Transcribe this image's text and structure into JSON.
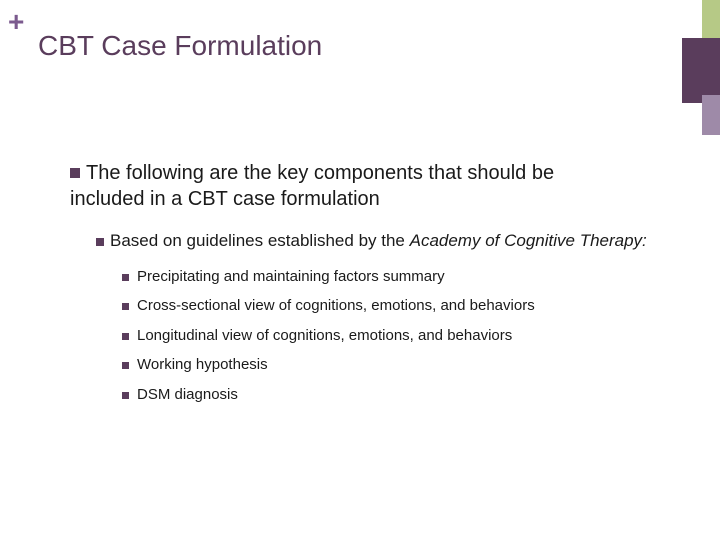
{
  "decor": {
    "plus_color": "#7b5a8e",
    "block1_color": "#b6c986",
    "block2_color": "#5a3d5c",
    "block3_color": "#9e8aa8"
  },
  "title": "CBT Case Formulation",
  "level1": {
    "text_a": "The following are the key components that should be",
    "text_b": "included in a CBT case formulation"
  },
  "level2": {
    "prefix": "Based on guidelines established by the ",
    "italic": "Academy of Cognitive Therapy:"
  },
  "level3": [
    "Precipitating and maintaining factors summary",
    "Cross-sectional view of cognitions, emotions, and behaviors",
    "Longitudinal view of cognitions, emotions, and behaviors",
    "Working hypothesis",
    "DSM diagnosis"
  ],
  "colors": {
    "title": "#5a3d5c",
    "text": "#1a1a1a",
    "bullet": "#5a3d5c",
    "background": "#ffffff"
  },
  "fonts": {
    "title_size": 28,
    "l1_size": 20,
    "l2_size": 17,
    "l3_size": 15
  }
}
